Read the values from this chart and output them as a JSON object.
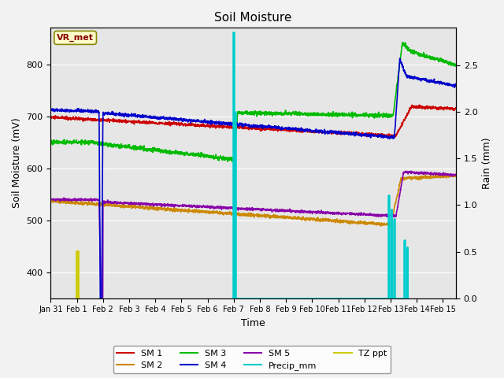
{
  "title": "Soil Moisture",
  "ylabel_left": "Soil Moisture (mV)",
  "ylabel_right": "Rain (mm)",
  "xlabel": "Time",
  "xlim_days": [
    0,
    15.5
  ],
  "ylim_left": [
    350,
    870
  ],
  "ylim_right": [
    0.0,
    2.9
  ],
  "bg_color": "#e6e6e6",
  "fig_color": "#f2f2f2",
  "annotation_text": "VR_met",
  "annotation_box_color": "#ffffcc",
  "annotation_text_color": "#880000",
  "x_tick_labels": [
    "Jan 31",
    "Feb 1",
    "Feb 2",
    "Feb 3",
    "Feb 4",
    "Feb 5",
    "Feb 6",
    "Feb 7",
    "Feb 8",
    "Feb 9",
    "Feb 10",
    "Feb 11",
    "Feb 12",
    "Feb 13",
    "Feb 14",
    "Feb 15"
  ],
  "colors": {
    "SM1": "#cc0000",
    "SM2": "#cc8800",
    "SM3": "#00bb00",
    "SM4": "#0000cc",
    "SM5": "#8800aa",
    "Precip": "#00cccc",
    "TZ": "#cccc00"
  }
}
